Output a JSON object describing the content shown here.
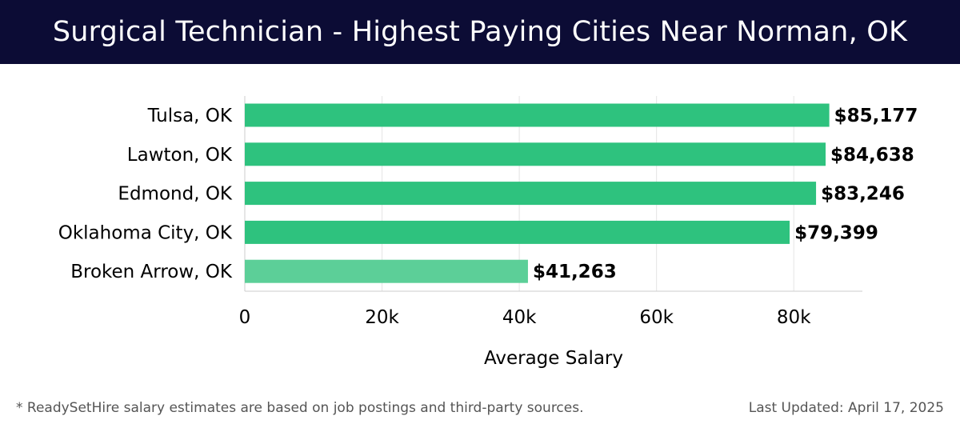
{
  "header": {
    "title": "Surgical Technician - Highest Paying Cities Near Norman, OK"
  },
  "footer": {
    "note": "* ReadySetHire salary estimates are based on job postings and third-party sources.",
    "updated": "Last Updated: April 17, 2025"
  },
  "colors": {
    "header_bg": "#0c0c35",
    "bar": "#2ec27e",
    "bar_light": "#5ccf98"
  },
  "chart_data": {
    "type": "bar",
    "orientation": "horizontal",
    "categories": [
      "Tulsa, OK",
      "Lawton, OK",
      "Edmond, OK",
      "Oklahoma City, OK",
      "Broken Arrow, OK"
    ],
    "values": [
      85177,
      84638,
      83246,
      79399,
      41263
    ],
    "value_labels": [
      "$85,177",
      "$84,638",
      "$83,246",
      "$79,399",
      "$41,263"
    ],
    "xlabel": "Average Salary",
    "ylabel": "",
    "xlim": [
      0,
      90000
    ],
    "xticks": [
      0,
      20000,
      40000,
      60000,
      80000
    ],
    "xtick_labels": [
      "0",
      "20k",
      "40k",
      "60k",
      "80k"
    ],
    "grid": true,
    "legend": "none"
  }
}
